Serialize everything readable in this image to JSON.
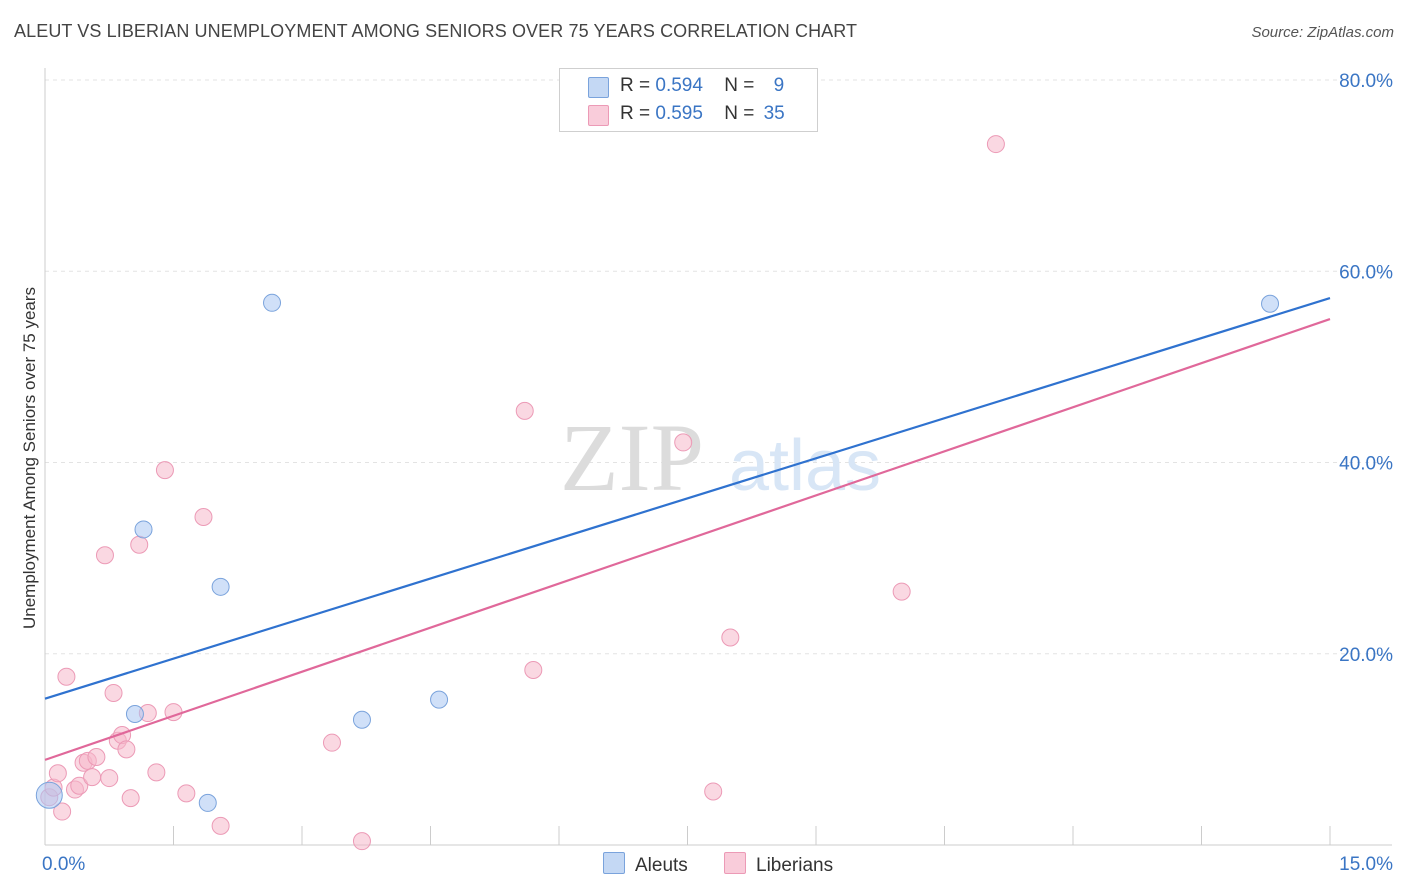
{
  "header": {
    "title": "ALEUT VS LIBERIAN UNEMPLOYMENT AMONG SENIORS OVER 75 YEARS CORRELATION CHART",
    "source": "Source: ZipAtlas.com"
  },
  "watermark": {
    "zip": "ZIP",
    "atlas": "atlas"
  },
  "legend": {
    "r_label": "R =",
    "n_label": "N =",
    "rows": [
      {
        "series": "Aleuts",
        "r": "0.594",
        "n": "9",
        "color": "#a9c7f2"
      },
      {
        "series": "Liberians",
        "r": "0.595",
        "n": "35",
        "color": "#f6b8cb"
      }
    ]
  },
  "bottom_legend": [
    "Aleuts",
    "Liberians"
  ],
  "chart_data": {
    "type": "scatter",
    "title": "ALEUT VS LIBERIAN UNEMPLOYMENT AMONG SENIORS OVER 75 YEARS CORRELATION CHART",
    "xlabel": "",
    "ylabel": "Unemployment Among Seniors over 75 years",
    "xlim": [
      0,
      15
    ],
    "ylim": [
      0,
      80
    ],
    "x_tick_labels": [
      {
        "value": 0,
        "label": "0.0%"
      },
      {
        "value": 15,
        "label": "15.0%"
      }
    ],
    "y_tick_labels": [
      {
        "value": 20,
        "label": "20.0%"
      },
      {
        "value": 40,
        "label": "40.0%"
      },
      {
        "value": 60,
        "label": "60.0%"
      },
      {
        "value": 80,
        "label": "80.0%"
      }
    ],
    "grid": true,
    "series": [
      {
        "name": "Aleuts",
        "color": "#a9c7f2",
        "line_color": "#2f72cf",
        "points": [
          {
            "x": 0.05,
            "y": 5.2
          },
          {
            "x": 1.05,
            "y": 13.7
          },
          {
            "x": 1.15,
            "y": 33.0
          },
          {
            "x": 1.9,
            "y": 4.4
          },
          {
            "x": 2.05,
            "y": 27.0
          },
          {
            "x": 2.65,
            "y": 56.7
          },
          {
            "x": 3.7,
            "y": 13.1
          },
          {
            "x": 4.6,
            "y": 15.2
          },
          {
            "x": 14.3,
            "y": 56.6
          }
        ],
        "trend": {
          "x0": 0,
          "y0": 15.3,
          "x1": 15,
          "y1": 57.2
        }
      },
      {
        "name": "Liberians",
        "color": "#f6b8cb",
        "line_color": "#e0689a",
        "points": [
          {
            "x": 0.05,
            "y": 5.0
          },
          {
            "x": 0.1,
            "y": 6.0
          },
          {
            "x": 0.15,
            "y": 7.5
          },
          {
            "x": 0.2,
            "y": 3.5
          },
          {
            "x": 0.25,
            "y": 17.6
          },
          {
            "x": 0.35,
            "y": 5.8
          },
          {
            "x": 0.4,
            "y": 6.2
          },
          {
            "x": 0.45,
            "y": 8.6
          },
          {
            "x": 0.5,
            "y": 8.8
          },
          {
            "x": 0.55,
            "y": 7.1
          },
          {
            "x": 0.6,
            "y": 9.2
          },
          {
            "x": 0.7,
            "y": 30.3
          },
          {
            "x": 0.75,
            "y": 7.0
          },
          {
            "x": 0.8,
            "y": 15.9
          },
          {
            "x": 0.85,
            "y": 10.9
          },
          {
            "x": 0.9,
            "y": 11.5
          },
          {
            "x": 0.95,
            "y": 10.0
          },
          {
            "x": 1.0,
            "y": 4.9
          },
          {
            "x": 1.1,
            "y": 31.4
          },
          {
            "x": 1.2,
            "y": 13.8
          },
          {
            "x": 1.3,
            "y": 7.6
          },
          {
            "x": 1.4,
            "y": 39.2
          },
          {
            "x": 1.5,
            "y": 13.9
          },
          {
            "x": 1.65,
            "y": 5.4
          },
          {
            "x": 1.85,
            "y": 34.3
          },
          {
            "x": 2.05,
            "y": 2.0
          },
          {
            "x": 3.35,
            "y": 10.7
          },
          {
            "x": 3.7,
            "y": 0.4
          },
          {
            "x": 5.6,
            "y": 45.4
          },
          {
            "x": 5.7,
            "y": 18.3
          },
          {
            "x": 7.45,
            "y": 42.1
          },
          {
            "x": 7.8,
            "y": 5.6
          },
          {
            "x": 8.0,
            "y": 21.7
          },
          {
            "x": 10.0,
            "y": 26.5
          },
          {
            "x": 11.1,
            "y": 73.3
          }
        ],
        "trend": {
          "x0": 0,
          "y0": 8.9,
          "x1": 15,
          "y1": 55.0
        }
      }
    ]
  }
}
